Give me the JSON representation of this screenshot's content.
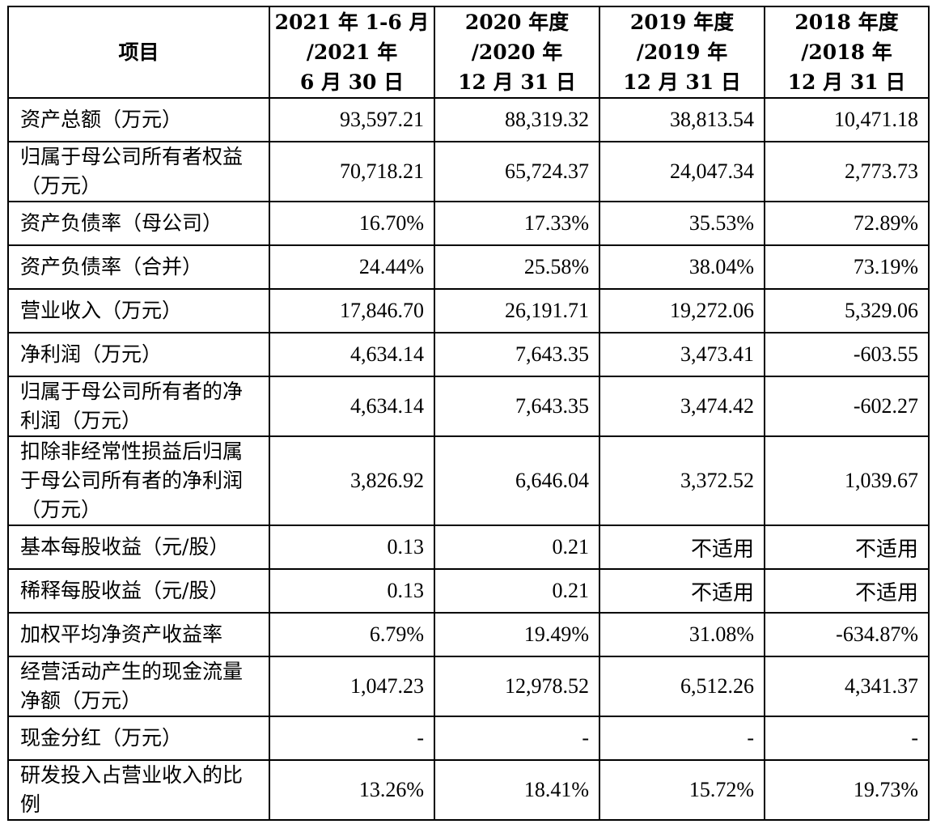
{
  "header": {
    "item_label": "项目",
    "columns": [
      [
        "2021 年 1-6 月",
        "/2021 年",
        "6 月 30 日"
      ],
      [
        "2020 年度",
        "/2020 年",
        "12 月 31 日"
      ],
      [
        "2019 年度",
        "/2019 年",
        "12 月 31 日"
      ],
      [
        "2018 年度",
        "/2018 年",
        "12 月 31 日"
      ]
    ]
  },
  "rows": [
    {
      "label": "资产总额（万元）",
      "values": [
        "93,597.21",
        "88,319.32",
        "38,813.54",
        "10,471.18"
      ]
    },
    {
      "label": "归属于母公司所有者权益（万元）",
      "values": [
        "70,718.21",
        "65,724.37",
        "24,047.34",
        "2,773.73"
      ]
    },
    {
      "label": "资产负债率（母公司）",
      "values": [
        "16.70%",
        "17.33%",
        "35.53%",
        "72.89%"
      ]
    },
    {
      "label": "资产负债率（合并）",
      "values": [
        "24.44%",
        "25.58%",
        "38.04%",
        "73.19%"
      ]
    },
    {
      "label": "营业收入（万元）",
      "values": [
        "17,846.70",
        "26,191.71",
        "19,272.06",
        "5,329.06"
      ]
    },
    {
      "label": "净利润（万元）",
      "values": [
        "4,634.14",
        "7,643.35",
        "3,473.41",
        "-603.55"
      ]
    },
    {
      "label": "归属于母公司所有者的净利润（万元）",
      "values": [
        "4,634.14",
        "7,643.35",
        "3,474.42",
        "-602.27"
      ]
    },
    {
      "label": "扣除非经常性损益后归属于母公司所有者的净利润（万元）",
      "values": [
        "3,826.92",
        "6,646.04",
        "3,372.52",
        "1,039.67"
      ]
    },
    {
      "label": "基本每股收益（元/股）",
      "values": [
        "0.13",
        "0.21",
        "不适用",
        "不适用"
      ]
    },
    {
      "label": "稀释每股收益（元/股）",
      "values": [
        "0.13",
        "0.21",
        "不适用",
        "不适用"
      ]
    },
    {
      "label": "加权平均净资产收益率",
      "values": [
        "6.79%",
        "19.49%",
        "31.08%",
        "-634.87%"
      ]
    },
    {
      "label": "经营活动产生的现金流量净额（万元）",
      "values": [
        "1,047.23",
        "12,978.52",
        "6,512.26",
        "4,341.37"
      ]
    },
    {
      "label": "现金分红（万元）",
      "values": [
        "-",
        "-",
        "-",
        "-"
      ]
    },
    {
      "label": "研发投入占营业收入的比例",
      "values": [
        "13.26%",
        "18.41%",
        "15.72%",
        "19.73%"
      ]
    }
  ]
}
